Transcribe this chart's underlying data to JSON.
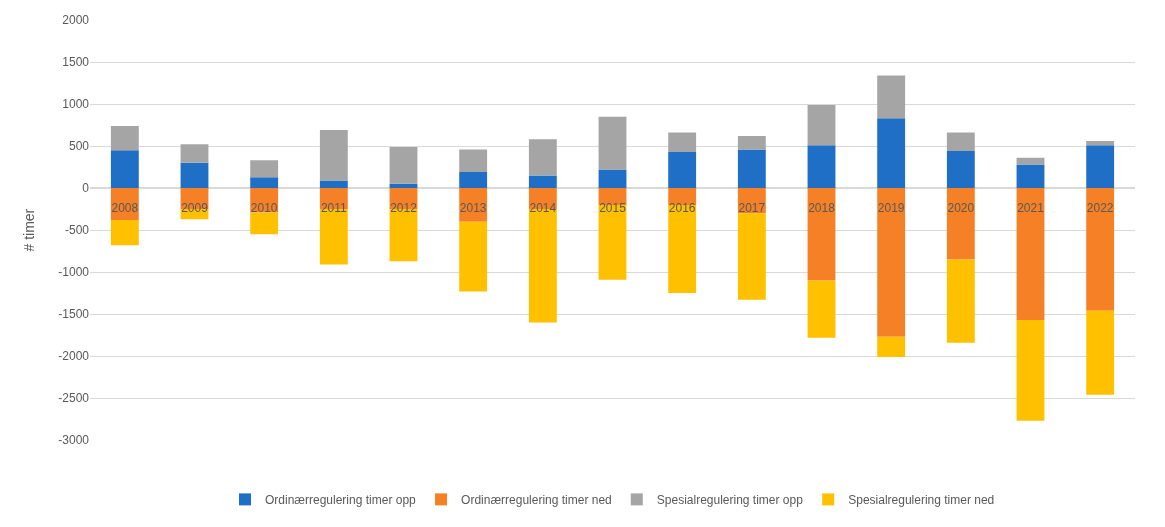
{
  "chart_data": {
    "type": "bar",
    "stacked": true,
    "ylabel": "# timer",
    "categories": [
      "2008",
      "2009",
      "2010",
      "2011",
      "2012",
      "2013",
      "2014",
      "2015",
      "2016",
      "2017",
      "2018",
      "2019",
      "2020",
      "2021",
      "2022"
    ],
    "series": [
      {
        "name": "Ordinærregulering timer opp",
        "color": "#1f6fc6",
        "values": [
          450,
          300,
          130,
          90,
          50,
          190,
          150,
          220,
          430,
          460,
          510,
          830,
          440,
          280,
          510
        ]
      },
      {
        "name": "Ordinærregulering timer ned",
        "color": "#f58025",
        "values": [
          -380,
          -250,
          -290,
          -250,
          -250,
          -400,
          -250,
          -200,
          -200,
          -300,
          -1100,
          -1770,
          -850,
          -1570,
          -1460
        ]
      },
      {
        "name": "Spesialregulering timer opp",
        "color": "#a5a5a5",
        "values": [
          290,
          220,
          200,
          600,
          440,
          270,
          430,
          630,
          230,
          160,
          480,
          510,
          220,
          80,
          50
        ]
      },
      {
        "name": "Spesialregulering timer ned",
        "color": "#ffc000",
        "values": [
          -300,
          -120,
          -260,
          -660,
          -620,
          -830,
          -1350,
          -890,
          -1050,
          -1030,
          -680,
          -240,
          -990,
          -1200,
          -1000
        ]
      }
    ],
    "ylim": [
      -3000,
      2000
    ],
    "yticks": [
      -3000,
      -2500,
      -2000,
      -1500,
      -1000,
      -500,
      0,
      500,
      1000,
      1500,
      2000
    ],
    "grid": "y",
    "legend": "bottom"
  }
}
